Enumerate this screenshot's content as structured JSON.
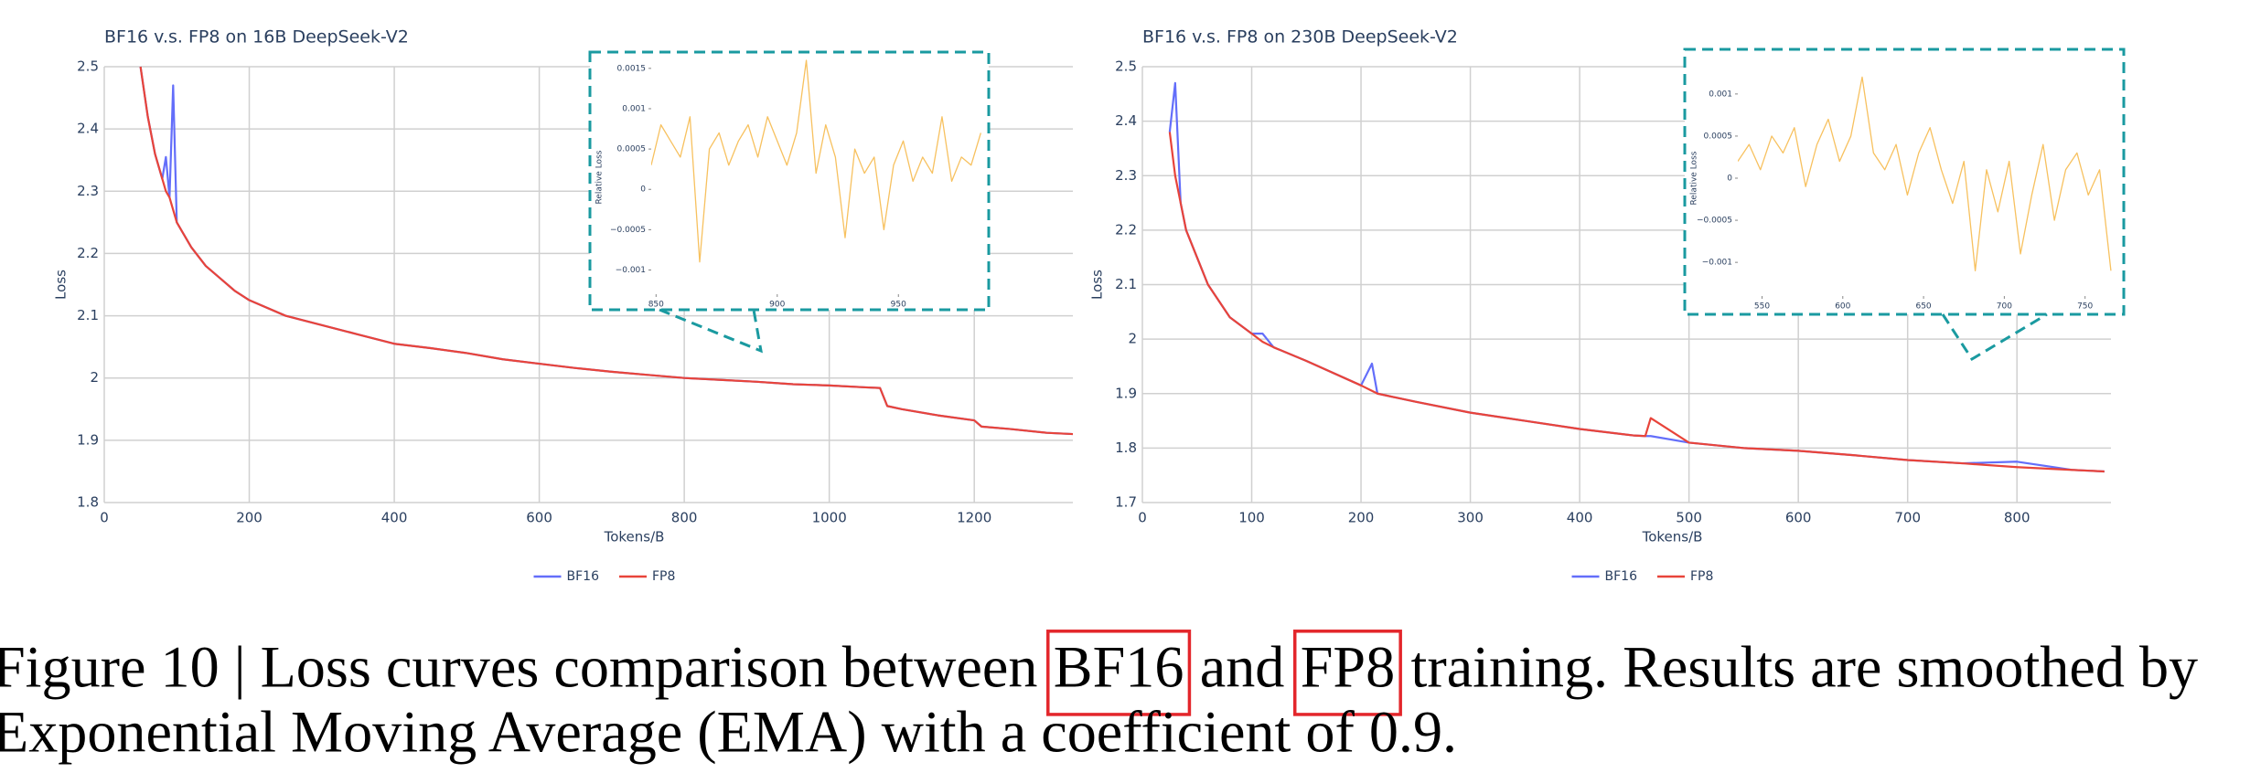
{
  "chart_data": [
    {
      "type": "line",
      "title": "BF16 v.s. FP8 on 16B DeepSeek-V2",
      "x_label": "Tokens/B",
      "y_label": "Loss",
      "x": [
        50,
        60,
        70,
        80,
        85,
        90,
        95,
        100,
        110,
        120,
        140,
        160,
        180,
        200,
        250,
        300,
        350,
        400,
        450,
        500,
        550,
        600,
        650,
        700,
        750,
        800,
        850,
        900,
        950,
        1000,
        1050,
        1070,
        1080,
        1100,
        1150,
        1200,
        1210,
        1250,
        1300,
        1336
      ],
      "series": [
        {
          "name": "BF16",
          "color": "#636efa",
          "values": [
            2.5,
            2.42,
            2.36,
            2.32,
            2.355,
            2.29,
            2.47,
            2.25,
            2.23,
            2.21,
            2.18,
            2.16,
            2.14,
            2.125,
            2.1,
            2.085,
            2.07,
            2.055,
            2.048,
            2.04,
            2.03,
            2.023,
            2.016,
            2.01,
            2.005,
            2.0,
            1.997,
            1.994,
            1.99,
            1.988,
            1.985,
            1.984,
            1.955,
            1.95,
            1.94,
            1.932,
            1.922,
            1.918,
            1.912,
            1.91
          ]
        },
        {
          "name": "FP8",
          "color": "#e8443a",
          "values": [
            2.5,
            2.42,
            2.36,
            2.32,
            2.3,
            2.29,
            2.27,
            2.25,
            2.23,
            2.21,
            2.18,
            2.16,
            2.14,
            2.125,
            2.1,
            2.085,
            2.07,
            2.055,
            2.048,
            2.04,
            2.03,
            2.023,
            2.016,
            2.01,
            2.005,
            2.0,
            1.997,
            1.994,
            1.99,
            1.988,
            1.985,
            1.984,
            1.955,
            1.95,
            1.94,
            1.932,
            1.922,
            1.918,
            1.912,
            1.91
          ]
        }
      ],
      "xlim": [
        0,
        1336
      ],
      "xticks": [
        0,
        200,
        400,
        600,
        800,
        1000,
        1200
      ],
      "ylim": [
        1.8,
        2.5
      ],
      "yticks": [
        1.8,
        1.9,
        2,
        2.1,
        2.2,
        2.3,
        2.4,
        2.5
      ],
      "grid": true,
      "legend": "bottom",
      "inset": {
        "type": "line",
        "y_label": "Relative Loss",
        "x": [
          848,
          852,
          856,
          860,
          864,
          868,
          872,
          876,
          880,
          884,
          888,
          892,
          896,
          900,
          904,
          908,
          912,
          916,
          920,
          924,
          928,
          932,
          936,
          940,
          944,
          948,
          952,
          956,
          960,
          964,
          968,
          972,
          976,
          980,
          984
        ],
        "series": [
          {
            "color": "#f7c15f",
            "values": [
              0.0003,
              0.0008,
              0.0006,
              0.0004,
              0.0009,
              -0.0009,
              0.0005,
              0.0007,
              0.0003,
              0.0006,
              0.0008,
              0.0004,
              0.0009,
              0.0006,
              0.0003,
              0.0007,
              0.0016,
              0.0002,
              0.0008,
              0.0004,
              -0.0006,
              0.0005,
              0.0002,
              0.0004,
              -0.0005,
              0.0003,
              0.0006,
              0.0001,
              0.0004,
              0.0002,
              0.0009,
              0.0001,
              0.0004,
              0.0003,
              0.0007
            ]
          }
        ],
        "xlim": [
          848,
          985
        ],
        "xticks": [
          850,
          900,
          950
        ],
        "ylim": [
          -0.0013,
          0.0016
        ],
        "yticks": [
          {
            "value": -0.001,
            "label": "−0.001"
          },
          {
            "value": -0.0005,
            "label": "−0.0005"
          },
          0,
          0.0005,
          0.001,
          0.0015
        ]
      }
    },
    {
      "type": "line",
      "title": "BF16 v.s. FP8 on 230B DeepSeek-V2",
      "x_label": "Tokens/B",
      "y_label": "Loss",
      "x": [
        25,
        30,
        35,
        40,
        50,
        60,
        80,
        100,
        110,
        120,
        150,
        200,
        210,
        215,
        250,
        300,
        350,
        400,
        450,
        460,
        465,
        500,
        550,
        600,
        650,
        700,
        750,
        800,
        850,
        880
      ],
      "series": [
        {
          "name": "BF16",
          "color": "#636efa",
          "values": [
            2.38,
            2.47,
            2.25,
            2.2,
            2.15,
            2.1,
            2.04,
            2.01,
            2.01,
            1.985,
            1.96,
            1.915,
            1.955,
            1.9,
            1.885,
            1.865,
            1.85,
            1.835,
            1.823,
            1.822,
            1.822,
            1.81,
            1.8,
            1.795,
            1.787,
            1.778,
            1.772,
            1.775,
            1.76,
            1.757
          ]
        },
        {
          "name": "FP8",
          "color": "#e8443a",
          "values": [
            2.38,
            2.3,
            2.25,
            2.2,
            2.15,
            2.1,
            2.04,
            2.01,
            1.995,
            1.985,
            1.96,
            1.915,
            1.905,
            1.9,
            1.885,
            1.865,
            1.85,
            1.835,
            1.823,
            1.822,
            1.855,
            1.81,
            1.8,
            1.795,
            1.787,
            1.778,
            1.772,
            1.765,
            1.76,
            1.757
          ]
        }
      ],
      "xlim": [
        0,
        886
      ],
      "xticks": [
        0,
        100,
        200,
        300,
        400,
        500,
        600,
        700,
        800
      ],
      "ylim": [
        1.7,
        2.5
      ],
      "yticks": [
        1.7,
        1.8,
        1.9,
        2,
        2.1,
        2.2,
        2.3,
        2.4,
        2.5
      ],
      "grid": true,
      "legend": "bottom",
      "inset": {
        "type": "line",
        "y_label": "Relative Loss",
        "x": [
          535,
          542,
          549,
          556,
          563,
          570,
          577,
          584,
          591,
          598,
          605,
          612,
          619,
          626,
          633,
          640,
          647,
          654,
          661,
          668,
          675,
          682,
          689,
          696,
          703,
          710,
          717,
          724,
          731,
          738,
          745,
          752,
          759,
          766
        ],
        "series": [
          {
            "color": "#f7c15f",
            "values": [
              0.0002,
              0.0004,
              0.0001,
              0.0005,
              0.0003,
              0.0006,
              -0.0001,
              0.0004,
              0.0007,
              0.0002,
              0.0005,
              0.0012,
              0.0003,
              0.0001,
              0.0004,
              -0.0002,
              0.0003,
              0.0006,
              0.0001,
              -0.0003,
              0.0002,
              -0.0011,
              0.0001,
              -0.0004,
              0.0002,
              -0.0009,
              -0.0002,
              0.0004,
              -0.0005,
              0.0001,
              0.0003,
              -0.0002,
              0.0001,
              -0.0011
            ]
          }
        ],
        "xlim": [
          535,
          770
        ],
        "xticks": [
          550,
          600,
          650,
          700,
          750
        ],
        "ylim": [
          -0.0014,
          0.0014
        ],
        "yticks": [
          {
            "value": -0.001,
            "label": "−0.001"
          },
          {
            "value": -0.0005,
            "label": "−0.0005"
          },
          0,
          0.0005,
          0.001
        ]
      }
    }
  ],
  "caption": [
    "Figure 10 | Loss curves comparison between",
    "BF16",
    "and",
    "FP8",
    "training. Results are smoothed by",
    "Exponential Moving Average (EMA) with a coefficient of 0.9."
  ]
}
